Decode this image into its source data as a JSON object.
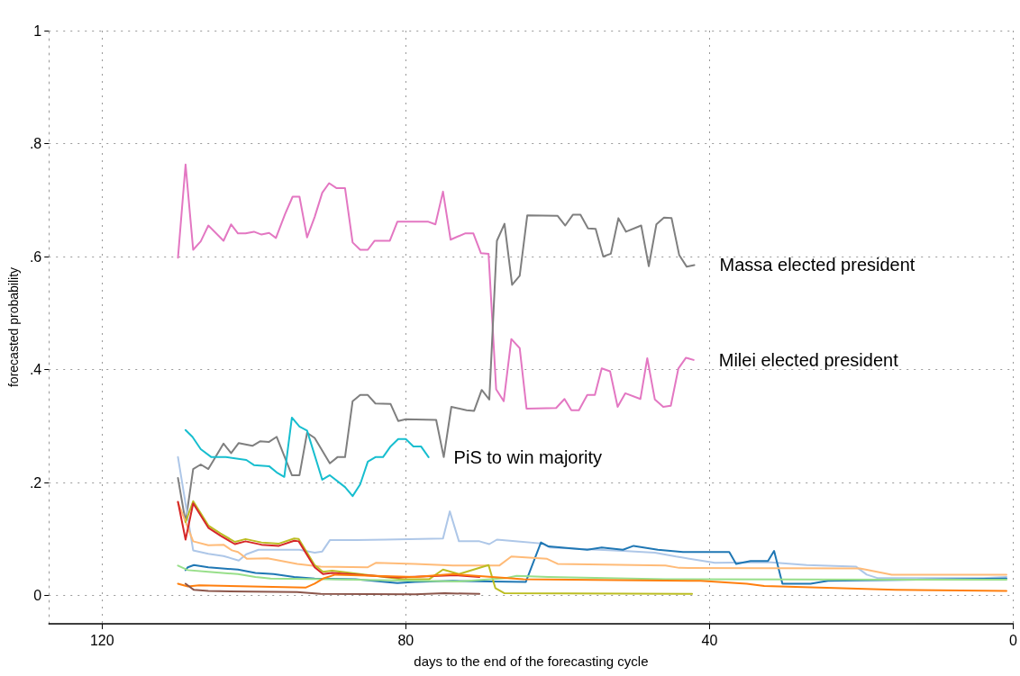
{
  "chart_data": {
    "type": "line",
    "xlabel": "days to the end of the forecasting cycle",
    "ylabel": "forecasted probability",
    "xlim": [
      127,
      0
    ],
    "xticks": [
      120,
      80,
      40,
      0
    ],
    "ylim": [
      -0.05,
      1
    ],
    "yticks": [
      0,
      {
        "value": 0.2,
        "label": ".2"
      },
      {
        "value": 0.4,
        "label": ".4"
      },
      {
        "value": 0.6,
        "label": ".6"
      },
      {
        "value": 0.8,
        "label": ".8"
      },
      1
    ],
    "grid": true,
    "legend": false,
    "marker": "none",
    "line_style": "solid",
    "series": [
      {
        "name": "Milei elected president",
        "color": "#e377c2",
        "x": [
          110,
          109,
          108,
          107,
          106,
          104,
          103,
          102.1,
          101.1,
          100,
          99,
          98,
          97.1,
          95.9,
          94.9,
          94,
          93,
          92,
          91,
          90.1,
          89.1,
          88,
          87,
          86,
          85,
          84.1,
          82.1,
          81.1,
          77.1,
          76.1,
          75.1,
          74.1,
          72.2,
          71.1,
          70.1,
          69.1,
          68.1,
          67.1,
          66.1,
          65,
          64.1,
          60.2,
          59.1,
          58.2,
          57.2,
          56.1,
          55.1,
          54.2,
          53.1,
          52.1,
          51.1,
          49.1,
          48.2,
          47.2,
          46.1,
          45.1,
          44.1,
          43.1,
          42.1
        ],
        "values": [
          0.598,
          0.763,
          0.612,
          0.627,
          0.655,
          0.628,
          0.657,
          0.641,
          0.641,
          0.644,
          0.639,
          0.642,
          0.633,
          0.675,
          0.706,
          0.706,
          0.634,
          0.67,
          0.713,
          0.73,
          0.721,
          0.721,
          0.625,
          0.612,
          0.612,
          0.628,
          0.628,
          0.662,
          0.662,
          0.657,
          0.715,
          0.63,
          0.641,
          0.641,
          0.606,
          0.605,
          0.365,
          0.344,
          0.454,
          0.438,
          0.331,
          0.332,
          0.348,
          0.328,
          0.328,
          0.355,
          0.355,
          0.402,
          0.397,
          0.334,
          0.358,
          0.348,
          0.42,
          0.347,
          0.334,
          0.336,
          0.402,
          0.421,
          0.417
        ]
      },
      {
        "name": "Massa elected president",
        "color": "#7f7f7f",
        "x": [
          110,
          109,
          108,
          107,
          106,
          104,
          103,
          102,
          100.2,
          99.2,
          98,
          97,
          95,
          94,
          93,
          92,
          90,
          89,
          88,
          87,
          86,
          85,
          84,
          82,
          81,
          80,
          76,
          75,
          74,
          72,
          71,
          70,
          69,
          68,
          67,
          66,
          65,
          64,
          60,
          59,
          58,
          57,
          56,
          55,
          54,
          53,
          52,
          51,
          49,
          48,
          47,
          46,
          45,
          44,
          43,
          42
        ],
        "values": [
          0.208,
          0.13,
          0.224,
          0.232,
          0.224,
          0.269,
          0.252,
          0.27,
          0.265,
          0.273,
          0.272,
          0.281,
          0.213,
          0.213,
          0.288,
          0.279,
          0.234,
          0.245,
          0.245,
          0.344,
          0.355,
          0.355,
          0.34,
          0.339,
          0.309,
          0.312,
          0.311,
          0.245,
          0.334,
          0.328,
          0.327,
          0.364,
          0.347,
          0.628,
          0.658,
          0.55,
          0.566,
          0.673,
          0.672,
          0.655,
          0.674,
          0.674,
          0.65,
          0.649,
          0.6,
          0.605,
          0.668,
          0.644,
          0.655,
          0.583,
          0.657,
          0.669,
          0.668,
          0.603,
          0.582,
          0.585
        ]
      },
      {
        "name": "PiS to win majority",
        "color": "#17becf",
        "x": [
          109,
          108.1,
          107,
          105.6,
          103.7,
          101,
          100,
          98,
          97,
          96,
          95,
          94,
          93,
          91,
          90,
          88,
          87,
          86,
          85,
          84,
          83,
          82,
          81,
          80,
          79,
          78,
          77
        ],
        "values": [
          0.293,
          0.281,
          0.259,
          0.245,
          0.245,
          0.24,
          0.231,
          0.229,
          0.218,
          0.21,
          0.315,
          0.299,
          0.292,
          0.205,
          0.213,
          0.192,
          0.176,
          0.197,
          0.237,
          0.245,
          0.245,
          0.264,
          0.277,
          0.277,
          0.264,
          0.264,
          0.245
        ]
      },
      {
        "color": "#aec7e8",
        "x": [
          110,
          108,
          106,
          104,
          102,
          101,
          99.4,
          96.7,
          94,
          92,
          91,
          90,
          86.6,
          82.7,
          75.1,
          74.2,
          73,
          70.3,
          69,
          68,
          65.6,
          62,
          61,
          51.4,
          47.2,
          44.4,
          39.3,
          32.3,
          27.2,
          20.7,
          19.3,
          17.9,
          3.9,
          0.9
        ],
        "values": [
          0.245,
          0.08,
          0.074,
          0.07,
          0.062,
          0.073,
          0.081,
          0.081,
          0.081,
          0.076,
          0.078,
          0.098,
          0.098,
          0.099,
          0.101,
          0.149,
          0.096,
          0.096,
          0.091,
          0.099,
          0.096,
          0.092,
          0.085,
          0.079,
          0.076,
          0.069,
          0.058,
          0.059,
          0.054,
          0.051,
          0.037,
          0.031,
          0.031,
          0.033
        ]
      },
      {
        "color": "#1f77b4",
        "x": [
          109,
          108.7,
          107.9,
          106,
          102.1,
          99.8,
          97.4,
          94.7,
          92,
          86.6,
          81.1,
          78.8,
          73.8,
          64.2,
          62.2,
          61.2,
          56.1,
          54.2,
          51.4,
          50,
          46.8,
          43.5,
          37.4,
          36.5,
          34.6,
          32.3,
          31.5,
          30.4,
          26.7,
          24.4,
          20.2,
          0.9
        ],
        "values": [
          0.045,
          0.05,
          0.054,
          0.05,
          0.046,
          0.04,
          0.038,
          0.033,
          0.03,
          0.029,
          0.022,
          0.024,
          0.026,
          0.024,
          0.094,
          0.087,
          0.081,
          0.085,
          0.081,
          0.088,
          0.081,
          0.077,
          0.077,
          0.056,
          0.061,
          0.061,
          0.079,
          0.021,
          0.021,
          0.026,
          0.027,
          0.03
        ]
      },
      {
        "color": "#ffbb78",
        "x": [
          110,
          108,
          106,
          104,
          102.9,
          102.1,
          100.9,
          98.2,
          94.3,
          91.2,
          85,
          83.9,
          78.8,
          73.8,
          67.7,
          66.1,
          61.4,
          60,
          45.8,
          44,
          20.2,
          16,
          0.9
        ],
        "values": [
          0.165,
          0.096,
          0.089,
          0.09,
          0.08,
          0.077,
          0.065,
          0.066,
          0.056,
          0.051,
          0.05,
          0.058,
          0.056,
          0.053,
          0.053,
          0.069,
          0.065,
          0.056,
          0.053,
          0.049,
          0.048,
          0.037,
          0.037
        ]
      },
      {
        "color": "#bcbd22",
        "x": [
          109,
          108,
          106,
          104.4,
          102.5,
          101.1,
          99,
          96.7,
          94.7,
          94.1,
          92,
          90.9,
          89.7,
          80.4,
          76.9,
          75.1,
          73,
          69.1,
          68.2,
          67,
          42.3
        ],
        "values": [
          0.13,
          0.167,
          0.124,
          0.11,
          0.095,
          0.1,
          0.094,
          0.092,
          0.101,
          0.1,
          0.054,
          0.042,
          0.044,
          0.029,
          0.029,
          0.046,
          0.038,
          0.054,
          0.013,
          0.004,
          0.003
        ]
      },
      {
        "color": "#d62728",
        "x": [
          110,
          109,
          108,
          106,
          104.4,
          102.5,
          101.1,
          99,
          96.7,
          94.7,
          94.1,
          92,
          90.9,
          89.7,
          81.1,
          73.4,
          70.3
        ],
        "values": [
          0.166,
          0.099,
          0.163,
          0.12,
          0.106,
          0.091,
          0.096,
          0.09,
          0.088,
          0.097,
          0.096,
          0.05,
          0.038,
          0.04,
          0.032,
          0.036,
          0.033
        ]
      },
      {
        "color": "#98df8a",
        "x": [
          110,
          108.7,
          106,
          102.1,
          99.8,
          97.8,
          90.5,
          73,
          66.8,
          65.4,
          61.2,
          45.8,
          0.9
        ],
        "values": [
          0.053,
          0.045,
          0.042,
          0.038,
          0.033,
          0.03,
          0.029,
          0.025,
          0.031,
          0.035,
          0.033,
          0.029,
          0.028
        ]
      },
      {
        "color": "#ff7f0e",
        "x": [
          110,
          108.7,
          107.2,
          93.2,
          92,
          90.9,
          89.3,
          78.8,
          73.8,
          64.5,
          41.2,
          35.1,
          32.8,
          22.5,
          15.5,
          0.9
        ],
        "values": [
          0.021,
          0.016,
          0.018,
          0.014,
          0.021,
          0.03,
          0.037,
          0.033,
          0.038,
          0.029,
          0.026,
          0.021,
          0.017,
          0.013,
          0.01,
          0.008
        ]
      },
      {
        "color": "#8c564b",
        "x": [
          109,
          107.9,
          106,
          94.3,
          91.2,
          78.8,
          74.9,
          70.3
        ],
        "values": [
          0.021,
          0.01,
          0.008,
          0.006,
          0.003,
          0.002,
          0.004,
          0.003
        ]
      }
    ]
  }
}
